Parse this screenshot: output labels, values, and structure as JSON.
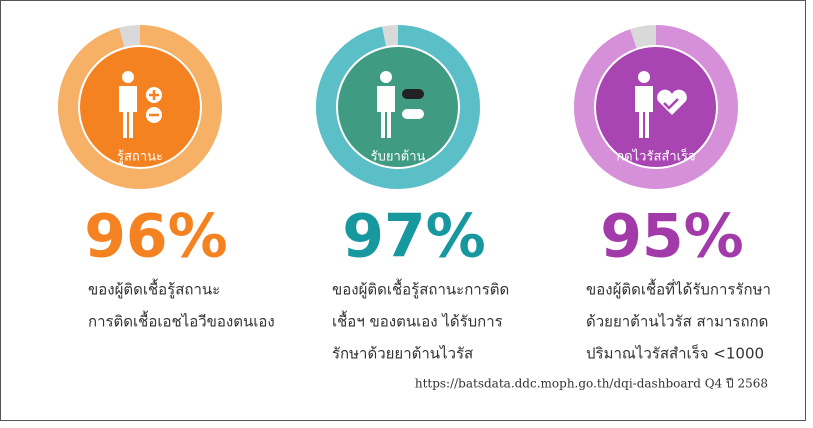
{
  "chart_data": [
    {
      "type": "donut",
      "label": "รู้สถานะ",
      "value": 96,
      "value_label": "96%",
      "color": "#f7b166",
      "center_color": "#f58220",
      "text_color": "#f58220",
      "description": [
        "ของผู้ติดเชื้อรู้สถานะ",
        "การติดเชื้อเอชไอวีของตนเอง"
      ]
    },
    {
      "type": "donut",
      "label": "รับยาต้าน",
      "value": 97,
      "value_label": "97%",
      "color": "#5bbfc8",
      "center_color": "#3f9b82",
      "text_color": "#17989f",
      "description": [
        "ของผู้ติดเชื้อรู้สถานะการติด",
        "เชื้อฯ ของตนเอง ได้รับการ",
        "รักษาด้วยยาต้านไวรัส"
      ]
    },
    {
      "type": "donut",
      "label": "กดไวรัสสำเร็จ",
      "value": 95,
      "value_label": "95%",
      "color": "#d690d9",
      "center_color": "#a944b3",
      "text_color": "#a23aaa",
      "description": [
        "ของผู้ติดเชื้อที่ได้รับการรักษา",
        "ด้วยยาต้านไวรัส สามารถกด",
        "ปริมาณไวรัสสำเร็จ <1000"
      ]
    }
  ],
  "source": "https://batsdata.ddc.moph.go.th/dqi-dashboard Q4 ปี 2568"
}
